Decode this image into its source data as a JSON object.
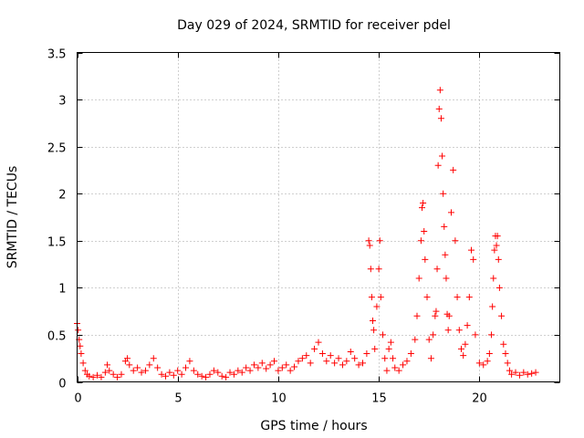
{
  "chart_data": {
    "type": "scatter",
    "title": "Day 029 of 2024, SRMTID for receiver pdel",
    "xlabel": "GPS time / hours",
    "ylabel": "SRMTID / TECUs",
    "xlim": [
      0,
      24
    ],
    "ylim": [
      0,
      3.5
    ],
    "xticks": [
      0,
      5,
      10,
      15,
      20
    ],
    "xtick_labels": [
      "0",
      "5",
      "10",
      "15",
      "20"
    ],
    "yticks": [
      0,
      0.5,
      1,
      1.5,
      2,
      2.5,
      3,
      3.5
    ],
    "ytick_labels": [
      "0",
      "0.5",
      "1",
      "1.5",
      "2",
      "2.5",
      "3",
      "3.5"
    ],
    "grid": true,
    "marker": "+",
    "color": "#ff0000",
    "series": [
      {
        "name": "SRMTID",
        "x": [
          0.0,
          0.05,
          0.1,
          0.15,
          0.2,
          0.3,
          0.4,
          0.5,
          0.6,
          0.8,
          1.0,
          1.2,
          1.4,
          1.5,
          1.6,
          1.8,
          2.0,
          2.2,
          2.4,
          2.5,
          2.6,
          2.8,
          3.0,
          3.2,
          3.4,
          3.6,
          3.8,
          4.0,
          4.2,
          4.4,
          4.6,
          4.8,
          5.0,
          5.2,
          5.4,
          5.6,
          5.8,
          6.0,
          6.2,
          6.4,
          6.6,
          6.8,
          7.0,
          7.2,
          7.4,
          7.6,
          7.8,
          8.0,
          8.2,
          8.4,
          8.6,
          8.8,
          9.0,
          9.2,
          9.4,
          9.6,
          9.8,
          10.0,
          10.2,
          10.4,
          10.6,
          10.8,
          11.0,
          11.2,
          11.4,
          11.6,
          11.8,
          12.0,
          12.2,
          12.4,
          12.6,
          12.8,
          13.0,
          13.2,
          13.4,
          13.6,
          13.8,
          14.0,
          14.2,
          14.4,
          14.5,
          14.55,
          14.6,
          14.65,
          14.7,
          14.75,
          14.8,
          14.9,
          15.0,
          15.05,
          15.1,
          15.2,
          15.3,
          15.4,
          15.5,
          15.6,
          15.7,
          15.8,
          16.0,
          16.2,
          16.4,
          16.6,
          16.8,
          16.9,
          17.0,
          17.1,
          17.15,
          17.2,
          17.25,
          17.3,
          17.4,
          17.5,
          17.6,
          17.7,
          17.8,
          17.85,
          17.9,
          17.95,
          18.0,
          18.05,
          18.1,
          18.15,
          18.2,
          18.25,
          18.3,
          18.35,
          18.4,
          18.45,
          18.5,
          18.6,
          18.7,
          18.8,
          18.9,
          19.0,
          19.1,
          19.2,
          19.3,
          19.4,
          19.5,
          19.6,
          19.7,
          19.8,
          20.0,
          20.2,
          20.4,
          20.5,
          20.6,
          20.65,
          20.7,
          20.75,
          20.8,
          20.85,
          20.9,
          20.95,
          21.0,
          21.1,
          21.2,
          21.3,
          21.4,
          21.5,
          21.6,
          21.8,
          22.0,
          22.2,
          22.4,
          22.6,
          22.8
        ],
        "y": [
          0.62,
          0.55,
          0.45,
          0.38,
          0.3,
          0.2,
          0.12,
          0.08,
          0.06,
          0.05,
          0.07,
          0.05,
          0.1,
          0.18,
          0.12,
          0.08,
          0.05,
          0.08,
          0.22,
          0.25,
          0.18,
          0.12,
          0.15,
          0.1,
          0.12,
          0.18,
          0.25,
          0.15,
          0.08,
          0.06,
          0.1,
          0.07,
          0.12,
          0.08,
          0.15,
          0.22,
          0.12,
          0.08,
          0.06,
          0.05,
          0.08,
          0.12,
          0.1,
          0.06,
          0.05,
          0.1,
          0.08,
          0.12,
          0.1,
          0.15,
          0.12,
          0.18,
          0.15,
          0.2,
          0.14,
          0.18,
          0.22,
          0.12,
          0.15,
          0.18,
          0.12,
          0.16,
          0.22,
          0.25,
          0.28,
          0.2,
          0.35,
          0.42,
          0.3,
          0.22,
          0.28,
          0.2,
          0.25,
          0.18,
          0.22,
          0.32,
          0.25,
          0.18,
          0.2,
          0.3,
          1.5,
          1.45,
          1.2,
          0.9,
          0.65,
          0.55,
          0.35,
          0.8,
          1.2,
          1.5,
          0.9,
          0.5,
          0.25,
          0.12,
          0.35,
          0.42,
          0.25,
          0.15,
          0.12,
          0.18,
          0.22,
          0.3,
          0.45,
          0.7,
          1.1,
          1.5,
          1.85,
          1.9,
          1.6,
          1.3,
          0.9,
          0.45,
          0.25,
          0.5,
          0.7,
          0.75,
          1.2,
          2.3,
          2.9,
          3.1,
          2.8,
          2.4,
          2.0,
          1.65,
          1.35,
          1.1,
          0.72,
          0.55,
          0.7,
          1.8,
          2.25,
          1.5,
          0.9,
          0.55,
          0.35,
          0.28,
          0.4,
          0.6,
          0.9,
          1.4,
          1.3,
          0.5,
          0.2,
          0.18,
          0.22,
          0.3,
          0.5,
          0.8,
          1.1,
          1.4,
          1.55,
          1.45,
          1.55,
          1.3,
          1.0,
          0.7,
          0.4,
          0.3,
          0.2,
          0.12,
          0.08,
          0.1,
          0.07,
          0.1,
          0.08,
          0.09,
          0.1
        ]
      }
    ]
  }
}
